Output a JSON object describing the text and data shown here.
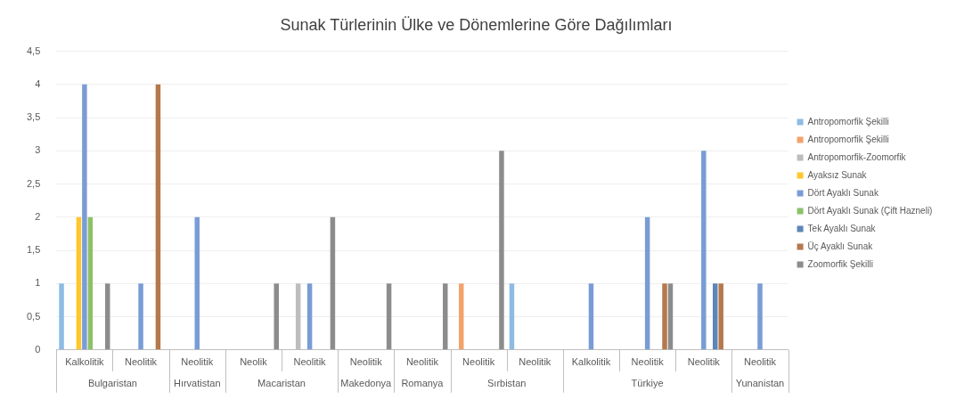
{
  "chart_data": {
    "type": "bar",
    "title": "Sunak Türlerinin Ülke ve Dönemlerine Göre Dağılımları",
    "categories": [
      "Kalkolitik",
      "Neolitik",
      "Neolitik",
      "Neolik",
      "Neolitik",
      "Neolitik",
      "Neolitik",
      "Neolitik",
      "Neolitik",
      "Kalkolitik",
      "Neolitik",
      "Neolitik",
      "Neolitik"
    ],
    "annotations": [
      "Bulgaristan",
      "Hırvatistan",
      "Macaristan",
      "Makedonya",
      "Romanya",
      "Sırbistan",
      "Türkiye",
      "Yunanistan"
    ],
    "series": [
      {
        "name": "Antropomorfik Şekilli",
        "color": "#8dbbe3",
        "values": [
          1,
          null,
          null,
          null,
          null,
          null,
          null,
          null,
          1,
          null,
          null,
          null,
          null
        ]
      },
      {
        "name": "Antropomorfik Şekilli",
        "color": "#f4a26b",
        "values": [
          null,
          null,
          null,
          null,
          null,
          null,
          null,
          1,
          null,
          null,
          null,
          null,
          null
        ]
      },
      {
        "name": "Antropomorfik-Zoomorfik",
        "color": "#bdbdbd",
        "values": [
          null,
          null,
          null,
          null,
          1,
          null,
          null,
          null,
          null,
          null,
          null,
          null,
          null
        ]
      },
      {
        "name": "Ayaksız Sunak",
        "color": "#ffc72c",
        "values": [
          2,
          null,
          null,
          null,
          null,
          null,
          null,
          null,
          null,
          null,
          null,
          null,
          null
        ]
      },
      {
        "name": "Dört Ayaklı Sunak",
        "color": "#7a9cd6",
        "values": [
          4,
          1,
          2,
          null,
          1,
          null,
          null,
          null,
          null,
          1,
          2,
          3,
          1
        ]
      },
      {
        "name": "Dört Ayaklı Sunak (Çift Hazneli)",
        "color": "#8cc16a",
        "values": [
          2,
          null,
          null,
          null,
          null,
          null,
          null,
          null,
          null,
          null,
          null,
          null,
          null
        ]
      },
      {
        "name": "Tek Ayaklı Sunak",
        "color": "#5b86b8",
        "values": [
          null,
          null,
          null,
          null,
          null,
          null,
          null,
          null,
          null,
          null,
          null,
          1,
          null
        ]
      },
      {
        "name": "Üç Ayaklı Sunak",
        "color": "#b5784c",
        "values": [
          null,
          4,
          null,
          null,
          null,
          null,
          null,
          null,
          null,
          null,
          1,
          1,
          null
        ]
      },
      {
        "name": "Zoomorfik Şekilli",
        "color": "#8c8c8c",
        "values": [
          1,
          null,
          null,
          1,
          2,
          1,
          1,
          3,
          null,
          null,
          1,
          null,
          null
        ]
      }
    ],
    "ylim": [
      0,
      4.5
    ],
    "yticks": [
      0,
      {
        "value": 0.5,
        "label": "0,5"
      },
      1,
      {
        "value": 1.5,
        "label": "1,5"
      },
      2,
      {
        "value": 2.5,
        "label": "2,5"
      },
      3,
      {
        "value": 3.5,
        "label": "3,5"
      },
      4,
      {
        "value": 4.5,
        "label": "4,5"
      }
    ],
    "grid": "y",
    "legend": "right"
  }
}
